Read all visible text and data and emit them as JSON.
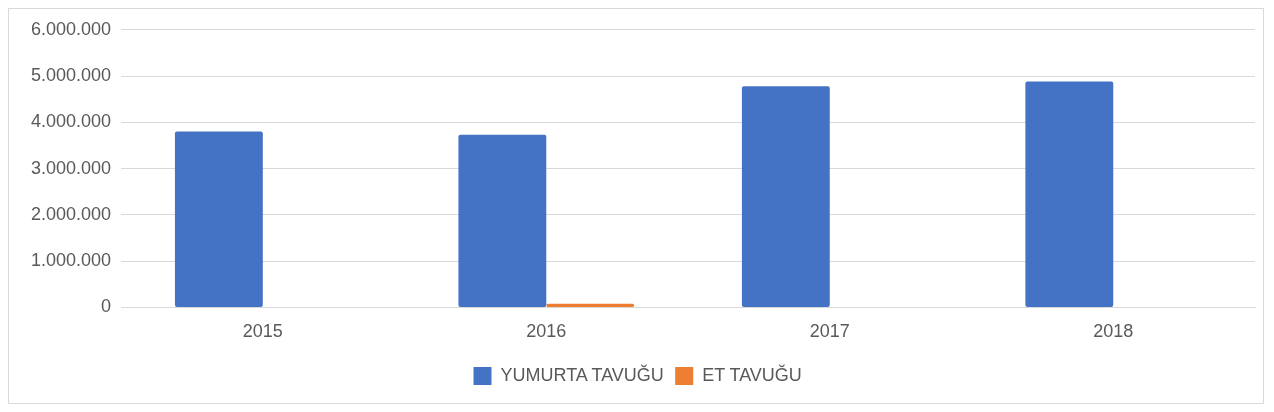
{
  "chart_data": {
    "type": "bar",
    "categories": [
      "2015",
      "2016",
      "2017",
      "2018"
    ],
    "series": [
      {
        "name": "YUMURTA TAVUĞU",
        "color": "#4472c4",
        "values": [
          3800000,
          3730000,
          4780000,
          4880000
        ]
      },
      {
        "name": "ET TAVUĞU",
        "color": "#ed7d31",
        "values": [
          0,
          80000,
          0,
          0
        ]
      }
    ],
    "ylim": [
      0,
      6000000
    ],
    "yticks": [
      {
        "value": 0,
        "label": "0"
      },
      {
        "value": 1000000,
        "label": "1.000.000"
      },
      {
        "value": 2000000,
        "label": "2.000.000"
      },
      {
        "value": 3000000,
        "label": "3.000.000"
      },
      {
        "value": 4000000,
        "label": "4.000.000"
      },
      {
        "value": 5000000,
        "label": "5.000.000"
      },
      {
        "value": 6000000,
        "label": "6.000.000"
      }
    ],
    "grid": "y",
    "legend": "bottom"
  }
}
